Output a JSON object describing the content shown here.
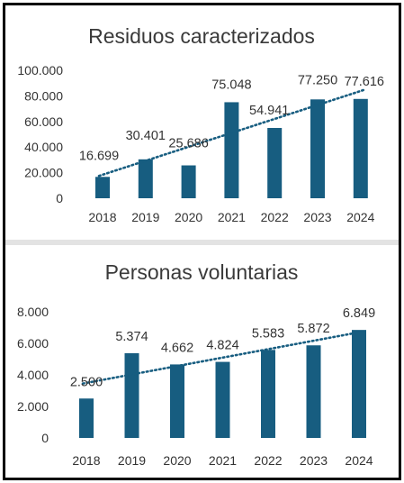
{
  "colors": {
    "bar": "#175d80",
    "trend": "#175d80",
    "text": "#333333",
    "frame": "#000000"
  },
  "chart_data": [
    {
      "type": "bar",
      "title": "Residuos caracterizados",
      "categories": [
        "2018",
        "2019",
        "2020",
        "2021",
        "2022",
        "2023",
        "2024"
      ],
      "values": [
        16699,
        30401,
        25686,
        75048,
        54941,
        77250,
        77616
      ],
      "data_labels": [
        "16.699",
        "30.401",
        "25.686",
        "75.048",
        "54.941",
        "77.250",
        "77.616"
      ],
      "yticks": [
        "0",
        "20.000",
        "40.000",
        "60.000",
        "80.000",
        "100.000"
      ],
      "ylim": [
        0,
        100000
      ],
      "trendline": "linear",
      "grid": false,
      "xlabel": "",
      "ylabel": ""
    },
    {
      "type": "bar",
      "title": "Personas voluntarias",
      "categories": [
        "2018",
        "2019",
        "2020",
        "2021",
        "2022",
        "2023",
        "2024"
      ],
      "values": [
        2500,
        5374,
        4662,
        4824,
        5583,
        5872,
        6849
      ],
      "data_labels": [
        "2.500",
        "5.374",
        "4.662",
        "4.824",
        "5.583",
        "5.872",
        "6.849"
      ],
      "yticks": [
        "0",
        "2.000",
        "4.000",
        "6.000",
        "8.000"
      ],
      "ylim": [
        0,
        8000
      ],
      "trendline": "linear",
      "grid": false,
      "xlabel": "",
      "ylabel": ""
    }
  ]
}
